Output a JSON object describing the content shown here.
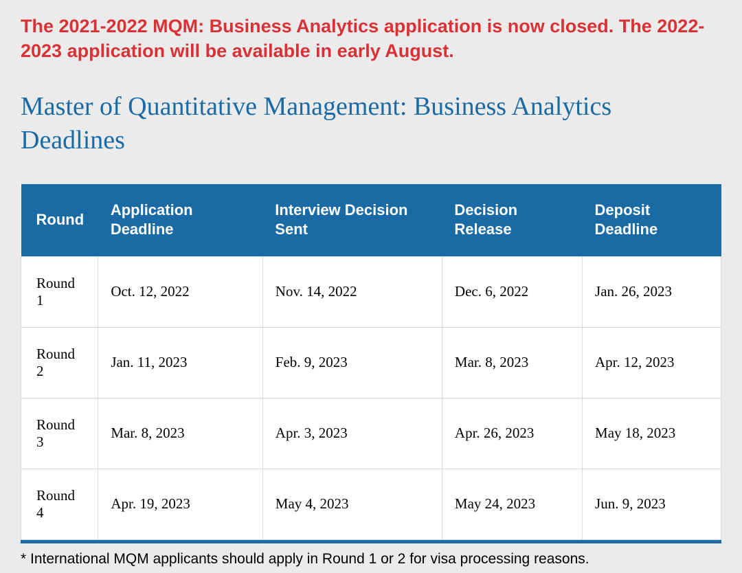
{
  "alert": {
    "text": "The 2021-2022 MQM: Business Analytics application is now closed. The 2022-2023 application will be available in early August.",
    "color": "#d83236"
  },
  "heading": {
    "text": "Master of Quantitative Management: Business Analytics Deadlines",
    "color": "#1a6ba5"
  },
  "table": {
    "header_bg": "#1a6ba5",
    "header_text_color": "#ffffff",
    "cell_bg": "#ffffff",
    "cell_text_color": "#000000",
    "border_color": "#d9d9d9",
    "bottom_border_color": "#1a6ba5",
    "columns": [
      "Round",
      "Application Deadline",
      "Interview Decision Sent",
      "Decision Release",
      "Deposit Deadline"
    ],
    "rows": [
      [
        "Round 1",
        "Oct. 12, 2022",
        "Nov. 14, 2022",
        "Dec. 6, 2022",
        "Jan. 26, 2023"
      ],
      [
        "Round 2",
        "Jan. 11, 2023",
        "Feb. 9, 2023",
        "Mar. 8, 2023",
        "Apr. 12, 2023"
      ],
      [
        "Round 3",
        "Mar. 8, 2023",
        "Apr. 3, 2023",
        "Apr. 26, 2023",
        "May 18, 2023"
      ],
      [
        "Round 4",
        "Apr. 19, 2023",
        "May 4, 2023",
        "May 24, 2023",
        "Jun. 9, 2023"
      ]
    ]
  },
  "footnote": {
    "text": "* International MQM applicants should apply in Round 1 or 2 for visa processing reasons."
  },
  "page": {
    "background_color": "#ebebeb"
  }
}
